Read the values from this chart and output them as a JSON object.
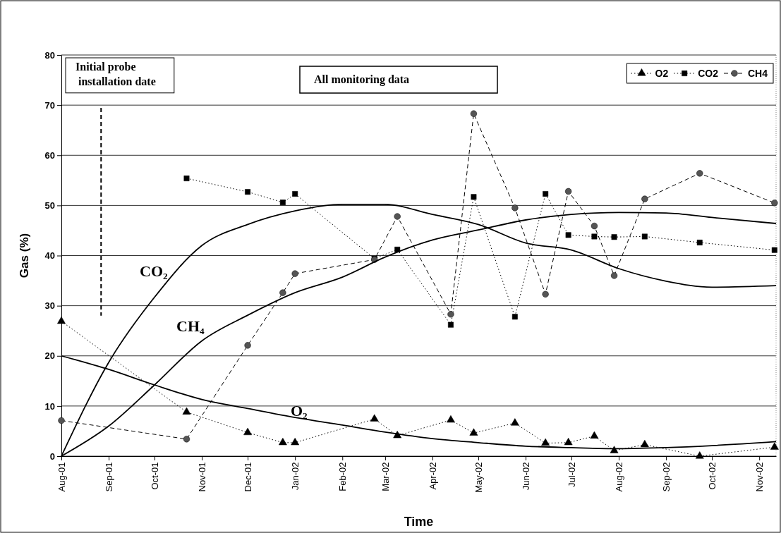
{
  "chart_data": {
    "type": "line",
    "title": "All monitoring data",
    "xlabel": "Time",
    "ylabel": "Gas (%)",
    "xlim": [
      "2001-08-01",
      "2002-11-12"
    ],
    "ylim": [
      0,
      80
    ],
    "yticks": [
      0,
      10,
      20,
      30,
      40,
      50,
      60,
      70,
      80
    ],
    "xticks": [
      {
        "value": "2001-08-01",
        "label": "Aug-01"
      },
      {
        "value": "2001-09-01",
        "label": "Sep-01"
      },
      {
        "value": "2001-10-01",
        "label": "Oct-01"
      },
      {
        "value": "2001-11-01",
        "label": "Nov-01"
      },
      {
        "value": "2001-12-01",
        "label": "Dec-01"
      },
      {
        "value": "2002-01-01",
        "label": "Jan-02"
      },
      {
        "value": "2002-02-01",
        "label": "Feb-02"
      },
      {
        "value": "2002-03-01",
        "label": "Mar-02"
      },
      {
        "value": "2002-04-01",
        "label": "Apr-02"
      },
      {
        "value": "2002-05-01",
        "label": "May-02"
      },
      {
        "value": "2002-06-01",
        "label": "Jun-02"
      },
      {
        "value": "2002-07-01",
        "label": "Jul-02"
      },
      {
        "value": "2002-08-01",
        "label": "Aug-02"
      },
      {
        "value": "2002-09-01",
        "label": "Sep-02"
      },
      {
        "value": "2002-10-01",
        "label": "Oct-02"
      },
      {
        "value": "2002-11-01",
        "label": "Nov-02"
      }
    ],
    "grid": "y",
    "legend": "top right",
    "series": [
      {
        "name": "O2",
        "color": "#000000",
        "marker": "triangle",
        "line_style": "dotted",
        "x": [
          "2001-08-01",
          "2001-10-22",
          "2001-12-01",
          "2001-12-24",
          "2002-01-01",
          "2002-02-22",
          "2002-03-09",
          "2002-04-13",
          "2002-04-28",
          "2002-05-25",
          "2002-06-14",
          "2002-06-29",
          "2002-07-16",
          "2002-07-29",
          "2002-08-18",
          "2002-09-23",
          "2002-11-11"
        ],
        "values": [
          26.9,
          8.8,
          4.7,
          2.7,
          2.7,
          7.4,
          4.1,
          7.2,
          4.6,
          6.6,
          2.6,
          2.7,
          4.0,
          1.1,
          2.3,
          0,
          1.8
        ]
      },
      {
        "name": "CO2",
        "color": "#000000",
        "marker": "square",
        "line_style": "dotted",
        "x": [
          "2001-10-22",
          "2001-12-01",
          "2001-12-24",
          "2002-01-01",
          "2002-02-22",
          "2002-03-09",
          "2002-04-13",
          "2002-04-28",
          "2002-05-25",
          "2002-06-14",
          "2002-06-29",
          "2002-07-16",
          "2002-07-29",
          "2002-08-18",
          "2002-09-23",
          "2002-11-11"
        ],
        "values": [
          55.4,
          52.7,
          50.6,
          52.3,
          39.4,
          41.2,
          26.2,
          51.7,
          27.8,
          52.3,
          44.1,
          43.8,
          43.7,
          43.8,
          42.6,
          41.1
        ]
      },
      {
        "name": "CH4",
        "color": "#555555",
        "marker": "circle",
        "line_style": "dashed",
        "x": [
          "2001-08-01",
          "2001-10-22",
          "2001-12-01",
          "2001-12-24",
          "2002-01-01",
          "2002-02-22",
          "2002-03-09",
          "2002-04-13",
          "2002-04-28",
          "2002-05-25",
          "2002-06-14",
          "2002-06-29",
          "2002-07-16",
          "2002-07-29",
          "2002-08-18",
          "2002-09-23",
          "2002-11-11"
        ],
        "values": [
          7.1,
          3.4,
          22.1,
          32.6,
          36.4,
          39.2,
          47.8,
          28.3,
          68.3,
          49.5,
          32.3,
          52.8,
          45.9,
          36.0,
          51.3,
          56.4,
          50.5
        ]
      },
      {
        "color": "#000000",
        "marker": "none",
        "line_style": "solid",
        "x": [
          "2001-08-01",
          "2001-09-01",
          "2001-10-01",
          "2001-11-01",
          "2001-12-01",
          "2002-01-01",
          "2002-02-01",
          "2002-03-01",
          "2002-04-01",
          "2002-05-01",
          "2002-06-01",
          "2002-07-01",
          "2002-08-01",
          "2002-09-01",
          "2002-10-01",
          "2002-11-12"
        ],
        "values": [
          0,
          18.7,
          31.7,
          42,
          46.2,
          48.9,
          50.2,
          50.2,
          48.2,
          46.2,
          42.5,
          41.1,
          37.4,
          34.9,
          33.7,
          34.0
        ]
      },
      {
        "color": "#000000",
        "marker": "none",
        "line_style": "solid",
        "x": [
          "2001-08-01",
          "2001-09-01",
          "2001-10-01",
          "2001-11-01",
          "2001-12-01",
          "2002-01-01",
          "2002-02-01",
          "2002-03-01",
          "2002-04-01",
          "2002-05-01",
          "2002-06-01",
          "2002-07-01",
          "2002-08-01",
          "2002-09-01",
          "2002-10-01",
          "2002-11-12"
        ],
        "values": [
          0,
          6.0,
          14.2,
          23,
          28.1,
          32.6,
          35.7,
          39.7,
          43.1,
          45.1,
          47.1,
          48.2,
          48.6,
          48.5,
          47.6,
          46.4
        ]
      },
      {
        "color": "#000000",
        "marker": "none",
        "line_style": "solid",
        "x": [
          "2001-08-01",
          "2001-09-01",
          "2001-10-01",
          "2001-11-01",
          "2001-12-01",
          "2002-01-01",
          "2002-02-01",
          "2002-03-01",
          "2002-04-01",
          "2002-05-01",
          "2002-06-01",
          "2002-07-01",
          "2002-08-01",
          "2002-09-01",
          "2002-10-01",
          "2002-11-12"
        ],
        "values": [
          20.0,
          17.3,
          14.2,
          11.3,
          9.5,
          7.7,
          6.2,
          4.8,
          3.5,
          2.7,
          2.0,
          1.7,
          1.5,
          1.7,
          2.1,
          2.9
        ]
      }
    ],
    "ref_lines": [
      {
        "axis": "x",
        "value": "2001-08-27",
        "label": "Initial probe installation date",
        "line_style": "dashed"
      }
    ],
    "annotations": [
      "CO₂",
      "CH₄",
      "O₂"
    ]
  }
}
